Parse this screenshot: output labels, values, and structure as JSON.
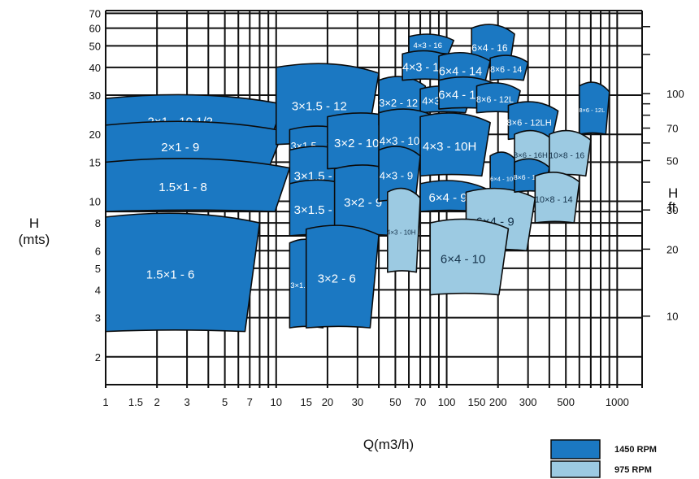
{
  "chart_data": {
    "type": "area",
    "title": "",
    "xlabel": "Q(m3/h)",
    "ylabel": "H (mts)",
    "y2label": "H ft",
    "x_scale": "log",
    "y_scale": "log",
    "xlim": [
      1,
      1400
    ],
    "ylim": [
      1.45,
      72
    ],
    "grid": true,
    "x_ticks": [
      "1",
      "1.5",
      "2",
      "3",
      "5",
      "7",
      "10",
      "15",
      "20",
      "30",
      "50",
      "70",
      "100",
      "150",
      "200",
      "300",
      "500",
      "1000"
    ],
    "y_ticks": [
      "2",
      "3",
      "4",
      "5",
      "6",
      "8",
      "10",
      "15",
      "20",
      "30",
      "40",
      "50",
      "60",
      "70"
    ],
    "y2_ticks": [
      "10",
      "20",
      "30",
      "50",
      "70",
      "100"
    ],
    "legend": {
      "placement": "bottom-right"
    },
    "series": [
      {
        "name": "1450 RPM",
        "color": "#1b78c2"
      },
      {
        "name": "975 RPM",
        "color": "#9ccae2"
      }
    ],
    "regions": [
      {
        "label": "2×1 - 10 1/2",
        "series": "1450 RPM",
        "q_range": [
          1,
          11
        ],
        "h_range": [
          18,
          29
        ]
      },
      {
        "label": "2×1 - 9",
        "series": "1450 RPM",
        "q_range": [
          1,
          11
        ],
        "h_range": [
          14,
          22
        ]
      },
      {
        "label": "1.5×1 - 8",
        "series": "1450 RPM",
        "q_range": [
          1,
          12
        ],
        "h_range": [
          9,
          15
        ]
      },
      {
        "label": "1.5×1 - 6",
        "series": "1450 RPM",
        "q_range": [
          1,
          8
        ],
        "h_range": [
          2.6,
          8.5
        ]
      },
      {
        "label": "3×1.5 - 12",
        "series": "1450 RPM",
        "q_range": [
          10,
          40
        ],
        "h_range": [
          18,
          40
        ]
      },
      {
        "label": "3×1.5 - 10.5",
        "series": "1450 RPM",
        "q_range": [
          12,
          30
        ],
        "h_range": [
          15,
          21
        ]
      },
      {
        "label": "3×1.5 - 9",
        "series": "1450 RPM",
        "q_range": [
          12,
          30
        ],
        "h_range": [
          10,
          17
        ]
      },
      {
        "label": "3×1.5 - 8",
        "series": "1450 RPM",
        "q_range": [
          12,
          30
        ],
        "h_range": [
          7,
          12
        ]
      },
      {
        "label": "3×1.5 - 6",
        "series": "1450 RPM",
        "q_range": [
          12,
          20
        ],
        "h_range": [
          2.7,
          6.5
        ]
      },
      {
        "label": "3×2 - 10.5",
        "series": "1450 RPM",
        "q_range": [
          20,
          60
        ],
        "h_range": [
          14,
          24
        ]
      },
      {
        "label": "3×2 - 9",
        "series": "1450 RPM",
        "q_range": [
          22,
          55
        ],
        "h_range": [
          7,
          14
        ]
      },
      {
        "label": "3×2 - 6",
        "series": "1450 RPM",
        "q_range": [
          15,
          40
        ],
        "h_range": [
          2.7,
          7.5
        ]
      },
      {
        "label": "3×2 - 12",
        "series": "1450 RPM",
        "q_range": [
          40,
          75
        ],
        "h_range": [
          22,
          35
        ]
      },
      {
        "label": "4×3 - 16",
        "series": "1450 RPM",
        "q_range": [
          60,
          110
        ],
        "h_range": [
          46,
          55
        ]
      },
      {
        "label": "4×3 - 14",
        "series": "1450 RPM",
        "q_range": [
          55,
          110
        ],
        "h_range": [
          35,
          46
        ]
      },
      {
        "label": "4×3 - 12",
        "series": "1450 RPM",
        "q_range": [
          70,
          140
        ],
        "h_range": [
          25,
          32
        ]
      },
      {
        "label": "4×3 - 10.5",
        "series": "1450 RPM",
        "q_range": [
          40,
          90
        ],
        "h_range": [
          14,
          25
        ]
      },
      {
        "label": "4×3 - 10H",
        "series": "1450 RPM",
        "q_range": [
          70,
          180
        ],
        "h_range": [
          13,
          24
        ]
      },
      {
        "label": "4×3 - 9",
        "series": "1450 RPM",
        "q_range": [
          40,
          70
        ],
        "h_range": [
          10,
          17
        ]
      },
      {
        "label": "4×3 - 10H",
        "series": "975 RPM",
        "q_range": [
          45,
          70
        ],
        "h_range": [
          4.8,
          11
        ]
      },
      {
        "label": "6×4 - 16",
        "series": "1450 RPM",
        "q_range": [
          140,
          250
        ],
        "h_range": [
          40,
          60
        ]
      },
      {
        "label": "6×4 - 14",
        "series": "1450 RPM",
        "q_range": [
          90,
          180
        ],
        "h_range": [
          33,
          45
        ]
      },
      {
        "label": "6×4 - 12L",
        "series": "1450 RPM",
        "q_range": [
          90,
          200
        ],
        "h_range": [
          26,
          35
        ]
      },
      {
        "label": "6×4 - 10",
        "series": "1450 RPM",
        "q_range": [
          180,
          260
        ],
        "h_range": [
          10,
          16
        ]
      },
      {
        "label": "6×4 - 9",
        "series": "1450 RPM",
        "q_range": [
          70,
          170
        ],
        "h_range": [
          9,
          12
        ]
      },
      {
        "label": "6×4 - 9",
        "series": "975 RPM",
        "q_range": [
          130,
          330
        ],
        "h_range": [
          6,
          11
        ]
      },
      {
        "label": "6×4 - 10",
        "series": "975 RPM",
        "q_range": [
          80,
          230
        ],
        "h_range": [
          3.8,
          8
        ]
      },
      {
        "label": "8×6 - 14",
        "series": "1450 RPM",
        "q_range": [
          180,
          300
        ],
        "h_range": [
          35,
          44
        ]
      },
      {
        "label": "8×6 - 12L",
        "series": "1450 RPM",
        "q_range": [
          150,
          270
        ],
        "h_range": [
          25,
          33
        ]
      },
      {
        "label": "8×6 - 12LH",
        "series": "1450 RPM",
        "q_range": [
          230,
          450
        ],
        "h_range": [
          19,
          27
        ]
      },
      {
        "label": "8×6 - 12L",
        "series": "1450 RPM",
        "q_range": [
          600,
          900
        ],
        "h_range": [
          20,
          33
        ]
      },
      {
        "label": "8×6 - 16H",
        "series": "975 RPM",
        "q_range": [
          250,
          420
        ],
        "h_range": [
          13,
          20
        ]
      },
      {
        "label": "8×6 - 14H",
        "series": "1450 RPM",
        "q_range": [
          250,
          400
        ],
        "h_range": [
          11,
          15
        ]
      },
      {
        "label": "10×8 - 16",
        "series": "975 RPM",
        "q_range": [
          400,
          700
        ],
        "h_range": [
          13,
          20
        ]
      },
      {
        "label": "10×8 - 14",
        "series": "975 RPM",
        "q_range": [
          330,
          600
        ],
        "h_range": [
          8,
          13
        ]
      }
    ]
  }
}
